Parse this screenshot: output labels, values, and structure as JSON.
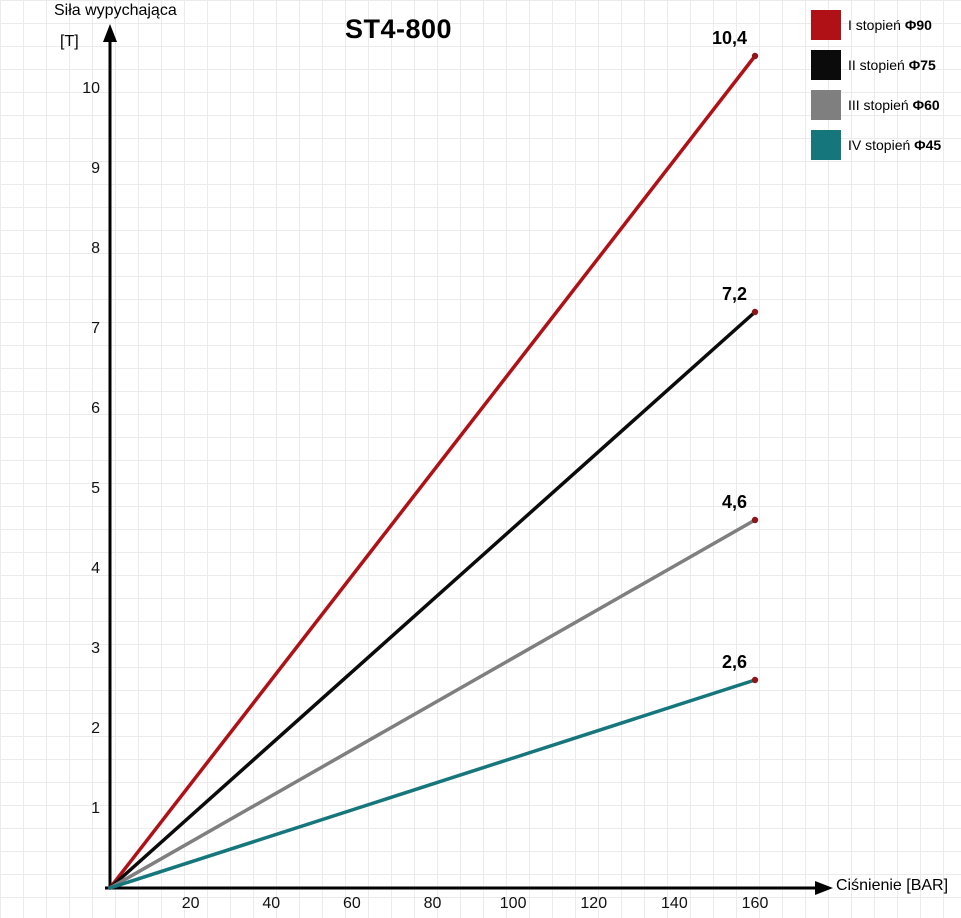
{
  "title": "ST4-800",
  "axes": {
    "y_label_line1": "Siła wypychająca",
    "y_label_line2": "[T]",
    "x_label": "Ciśnienie [BAR]"
  },
  "legend": {
    "items": [
      {
        "label": "I stopień ",
        "phi": "Φ90",
        "color": "#b01117"
      },
      {
        "label": "II stopień ",
        "phi": "Φ75",
        "color": "#0b0b0b"
      },
      {
        "label": "III stopień ",
        "phi": "Φ60",
        "color": "#7f7f7f"
      },
      {
        "label": "IV stopień ",
        "phi": "Φ45",
        "color": "#15767c"
      }
    ]
  },
  "chart_data": {
    "type": "line",
    "title": "ST4-800",
    "xlabel": "Ciśnienie [BAR]",
    "ylabel": "Siła wypychająca [T]",
    "x": [
      0,
      160
    ],
    "series": [
      {
        "name": "I stopień Φ90",
        "color": "#b01117",
        "values": [
          0,
          10.4
        ],
        "end_label": "10,4"
      },
      {
        "name": "II stopień Φ75",
        "color": "#0b0b0b",
        "values": [
          0,
          7.2
        ],
        "end_label": "7,2"
      },
      {
        "name": "III stopień Φ60",
        "color": "#7f7f7f",
        "values": [
          0,
          4.6
        ],
        "end_label": "4,6"
      },
      {
        "name": "IV stopień Φ45",
        "color": "#15767c",
        "values": [
          0,
          2.6
        ],
        "end_label": "2,6"
      }
    ],
    "x_ticks": [
      20,
      40,
      60,
      80,
      100,
      120,
      140,
      160
    ],
    "y_ticks": [
      1,
      2,
      3,
      4,
      5,
      6,
      7,
      8,
      9,
      10
    ],
    "xlim": [
      0,
      160
    ],
    "ylim": [
      0,
      10.8
    ],
    "grid": true,
    "legend_position": "top-right",
    "endpoint_dot_color": "#8f1616"
  }
}
